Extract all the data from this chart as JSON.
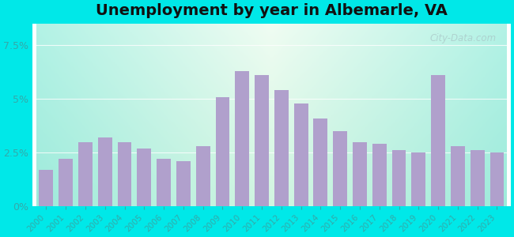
{
  "title": "Unemployment by year in Albemarle, VA",
  "years": [
    2000,
    2001,
    2002,
    2003,
    2004,
    2005,
    2006,
    2007,
    2008,
    2009,
    2010,
    2011,
    2012,
    2013,
    2014,
    2015,
    2016,
    2017,
    2018,
    2019,
    2020,
    2021,
    2022,
    2023
  ],
  "values": [
    1.7,
    2.2,
    3.0,
    3.2,
    3.0,
    2.7,
    2.2,
    2.1,
    2.8,
    5.1,
    6.3,
    6.1,
    5.4,
    4.8,
    4.1,
    3.5,
    3.0,
    2.9,
    2.6,
    2.5,
    6.1,
    2.8,
    2.6,
    2.5
  ],
  "bar_color": "#b0a0cc",
  "bg_outer": "#00e8e8",
  "yticks": [
    0,
    2.5,
    5.0,
    7.5
  ],
  "ylim": [
    0,
    8.5
  ],
  "title_fontsize": 14,
  "tick_color": "#33aaaa",
  "watermark_text": "City-Data.com"
}
